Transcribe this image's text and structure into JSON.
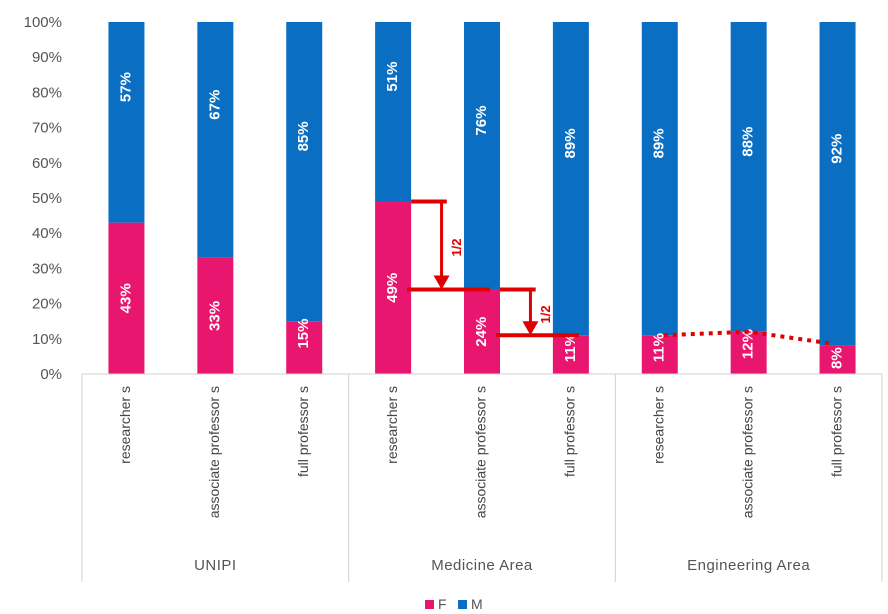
{
  "chart_data": {
    "type": "bar",
    "stacked": true,
    "percent": true,
    "y_ticks": [
      "0%",
      "10%",
      "20%",
      "30%",
      "40%",
      "50%",
      "60%",
      "70%",
      "80%",
      "90%",
      "100%"
    ],
    "ylim": [
      0,
      100
    ],
    "groups": [
      {
        "name": "UNIPI",
        "categories": [
          "researcher s",
          "associate professor s",
          "full professor s"
        ]
      },
      {
        "name": "Medicine Area",
        "categories": [
          "researcher s",
          "associate professor s",
          "full professor s"
        ]
      },
      {
        "name": "Engineering Area",
        "categories": [
          "researcher s",
          "associate professor s",
          "full professor s"
        ]
      }
    ],
    "series": [
      {
        "name": "F",
        "color": "#e8166f",
        "values": [
          43,
          33,
          15,
          49,
          24,
          11,
          11,
          12,
          8
        ],
        "labels": [
          "43%",
          "33%",
          "15%",
          "49%",
          "24%",
          "11%",
          "11%",
          "12%",
          "8%"
        ]
      },
      {
        "name": "M",
        "color": "#0a6fc2",
        "values": [
          57,
          67,
          85,
          51,
          76,
          89,
          89,
          88,
          92
        ],
        "labels": [
          "57%",
          "67%",
          "85%",
          "51%",
          "76%",
          "89%",
          "89%",
          "88%",
          "92%"
        ]
      }
    ],
    "annotations": [
      {
        "type": "halving-arrow",
        "text": "1/2",
        "from_value": 49,
        "to_value": 24
      },
      {
        "type": "halving-arrow",
        "text": "1/2",
        "from_value": 24,
        "to_value": 11
      },
      {
        "type": "dotted-line",
        "values": [
          11,
          12,
          8
        ]
      }
    ],
    "annotation_color": "#e00000",
    "legend_position": "bottom",
    "grid": false
  }
}
